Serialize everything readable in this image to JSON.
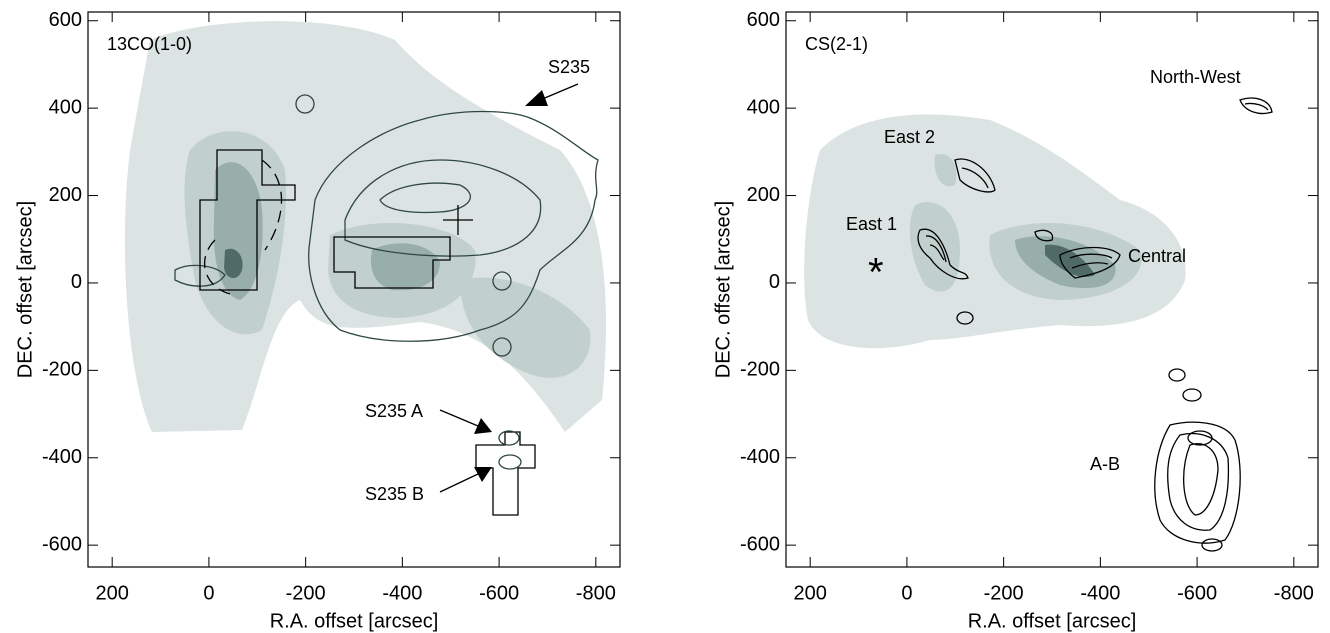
{
  "chart_data": [
    {
      "type": "contour",
      "title": "13CO(1-0)",
      "xlabel": "R.A. offset [arcsec]",
      "ylabel": "DEC. offset [arcsec]",
      "xlim": [
        250,
        -850
      ],
      "ylim": [
        -650,
        620
      ],
      "xticks": [
        200,
        0,
        -200,
        -400,
        -600,
        -800
      ],
      "yticks": [
        600,
        400,
        200,
        0,
        -200,
        -400,
        -600
      ],
      "annotations": [
        "S235",
        "S235 A",
        "S235 B"
      ]
    },
    {
      "type": "contour",
      "title": "CS(2-1)",
      "xlabel": "R.A. offset [arcsec]",
      "ylabel": "DEC. offset [arcsec]",
      "xlim": [
        250,
        -850
      ],
      "ylim": [
        -650,
        620
      ],
      "xticks": [
        200,
        0,
        -200,
        -400,
        -600,
        -800
      ],
      "yticks": [
        600,
        400,
        200,
        0,
        -200,
        -400,
        -600
      ],
      "annotations": [
        "North-West",
        "East 2",
        "East 1",
        "Central",
        "A-B",
        "*"
      ]
    }
  ]
}
